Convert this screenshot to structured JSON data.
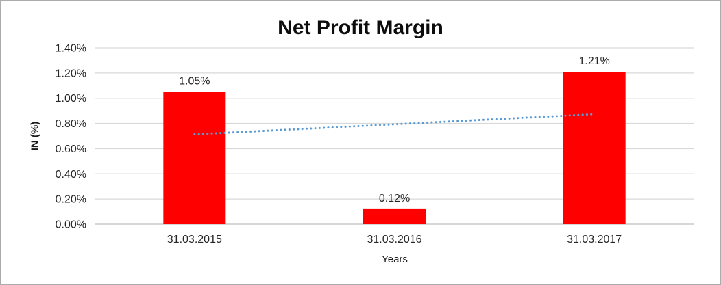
{
  "chart_data": {
    "type": "bar",
    "title": "Net Profit Margin",
    "xlabel": "Years",
    "ylabel": "IN (%)",
    "categories": [
      "31.03.2015",
      "31.03.2016",
      "31.03.2017"
    ],
    "values": [
      1.05,
      0.12,
      1.21
    ],
    "data_labels": [
      "1.05%",
      "0.12%",
      "1.21%"
    ],
    "ylim": [
      0,
      1.4
    ],
    "ytick_step": 0.2,
    "ytick_labels": [
      "0.00%",
      "0.20%",
      "0.40%",
      "0.60%",
      "0.80%",
      "1.00%",
      "1.20%",
      "1.40%"
    ],
    "grid": true,
    "legend": "none",
    "bar_color": "#ff0000",
    "trendline": {
      "type": "linear",
      "style": "dotted",
      "color": "#5b9bd5",
      "start_value": 0.71,
      "end_value": 0.87
    },
    "gridline_color": "#d9d9d9",
    "axis_line_color": "#bfbfbf",
    "frame_border_color": "#ababab",
    "label_color": "#262626"
  }
}
